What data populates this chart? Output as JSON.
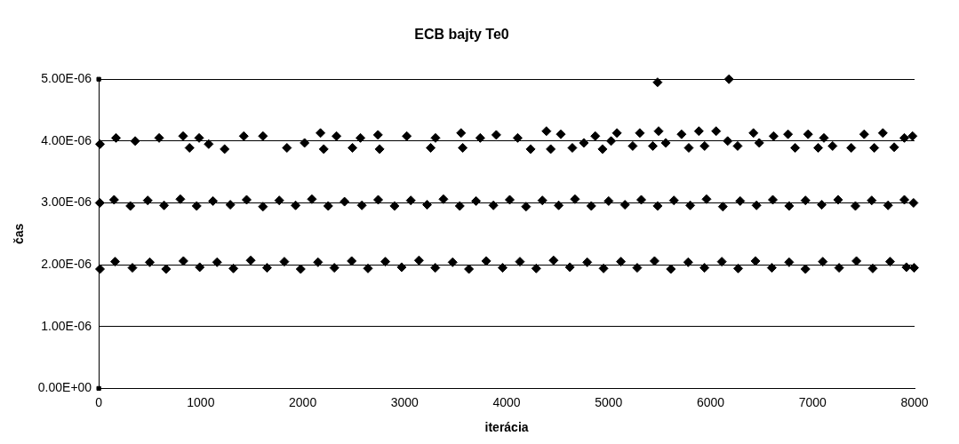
{
  "chart_data": {
    "type": "scatter",
    "title": "ECB bajty Te0",
    "xlabel": "iterácia",
    "ylabel": "čas",
    "xlim": [
      0,
      8000
    ],
    "xticks": [
      0,
      1000,
      2000,
      3000,
      4000,
      5000,
      6000,
      7000,
      8000
    ],
    "ylim": [
      0,
      5e-06
    ],
    "yticks": [
      {
        "value": 0,
        "label": "0.00E+00"
      },
      {
        "value": 1e-06,
        "label": "1.00E-06"
      },
      {
        "value": 2e-06,
        "label": "2.00E-06"
      },
      {
        "value": 3e-06,
        "label": "3.00E-06"
      },
      {
        "value": 4e-06,
        "label": "4.00E-06"
      },
      {
        "value": 5e-06,
        "label": "5.00E-06"
      }
    ],
    "grid": "y",
    "legend": false,
    "marker": "diamond",
    "series": [
      {
        "color": "#000000",
        "x": [
          12,
          169,
          357,
          592,
          827,
          890,
          984,
          1078,
          1234,
          1422,
          1610,
          1845,
          2018,
          2174,
          2206,
          2331,
          2488,
          2566,
          2738,
          2754,
          3020,
          3255,
          3302,
          3553,
          3569,
          3741,
          3898,
          4108,
          4235,
          4390,
          4432,
          4531,
          4644,
          4757,
          4869,
          4940,
          5024,
          5081,
          5236,
          5306,
          5433,
          5480,
          5490,
          5560,
          5715,
          5786,
          5885,
          5941,
          6054,
          6167,
          6180,
          6265,
          6420,
          6477,
          6618,
          6759,
          6829,
          6956,
          7055,
          7111,
          7196,
          7379,
          7506,
          7605,
          7689,
          7800,
          7900,
          7980
        ],
        "values": [
          3.95e-06,
          4.05e-06,
          4e-06,
          4.05e-06,
          4.08e-06,
          3.89e-06,
          4.05e-06,
          3.95e-06,
          3.87e-06,
          4.08e-06,
          4.08e-06,
          3.89e-06,
          3.97e-06,
          4.13e-06,
          3.87e-06,
          4.08e-06,
          3.89e-06,
          4.05e-06,
          4.1e-06,
          3.87e-06,
          4.08e-06,
          3.89e-06,
          4.05e-06,
          4.13e-06,
          3.89e-06,
          4.05e-06,
          4.1e-06,
          4.05e-06,
          3.87e-06,
          4.16e-06,
          3.87e-06,
          4.11e-06,
          3.89e-06,
          3.97e-06,
          4.08e-06,
          3.87e-06,
          4e-06,
          4.13e-06,
          3.92e-06,
          4.13e-06,
          3.92e-06,
          4.95e-06,
          4.16e-06,
          3.97e-06,
          4.11e-06,
          3.89e-06,
          4.16e-06,
          3.92e-06,
          4.16e-06,
          4e-06,
          5e-06,
          3.92e-06,
          4.13e-06,
          3.97e-06,
          4.08e-06,
          4.11e-06,
          3.89e-06,
          4.11e-06,
          3.89e-06,
          4.05e-06,
          3.92e-06,
          3.89e-06,
          4.11e-06,
          3.89e-06,
          4.13e-06,
          3.9e-06,
          4.05e-06,
          4.08e-06
        ]
      },
      {
        "color": "#000000",
        "x": [
          10,
          150,
          310,
          480,
          640,
          800,
          960,
          1120,
          1290,
          1450,
          1610,
          1770,
          1930,
          2090,
          2250,
          2410,
          2580,
          2740,
          2900,
          3060,
          3220,
          3380,
          3540,
          3700,
          3870,
          4030,
          4190,
          4350,
          4510,
          4670,
          4830,
          5000,
          5160,
          5320,
          5480,
          5640,
          5800,
          5960,
          6120,
          6290,
          6450,
          6610,
          6770,
          6930,
          7090,
          7250,
          7420,
          7580,
          7740,
          7900,
          7990
        ],
        "values": [
          3e-06,
          3.05e-06,
          2.95e-06,
          3.04e-06,
          2.96e-06,
          3.06e-06,
          2.95e-06,
          3.03e-06,
          2.97e-06,
          3.05e-06,
          2.94e-06,
          3.04e-06,
          2.96e-06,
          3.06e-06,
          2.95e-06,
          3.02e-06,
          2.96e-06,
          3.05e-06,
          2.95e-06,
          3.04e-06,
          2.97e-06,
          3.06e-06,
          2.95e-06,
          3.03e-06,
          2.96e-06,
          3.05e-06,
          2.94e-06,
          3.04e-06,
          2.96e-06,
          3.06e-06,
          2.95e-06,
          3.03e-06,
          2.97e-06,
          3.05e-06,
          2.95e-06,
          3.04e-06,
          2.96e-06,
          3.06e-06,
          2.94e-06,
          3.03e-06,
          2.96e-06,
          3.05e-06,
          2.95e-06,
          3.04e-06,
          2.97e-06,
          3.05e-06,
          2.95e-06,
          3.04e-06,
          2.96e-06,
          3.05e-06,
          3e-06
        ]
      },
      {
        "color": "#000000",
        "x": [
          12,
          160,
          330,
          500,
          660,
          830,
          990,
          1160,
          1320,
          1490,
          1650,
          1820,
          1980,
          2150,
          2310,
          2480,
          2640,
          2810,
          2970,
          3140,
          3300,
          3470,
          3630,
          3800,
          3960,
          4130,
          4290,
          4460,
          4620,
          4790,
          4950,
          5120,
          5280,
          5450,
          5610,
          5780,
          5940,
          6110,
          6270,
          6440,
          6600,
          6770,
          6930,
          7100,
          7260,
          7430,
          7590,
          7760,
          7920,
          7995
        ],
        "values": [
          1.93e-06,
          2.05e-06,
          1.95e-06,
          2.04e-06,
          1.93e-06,
          2.06e-06,
          1.96e-06,
          2.04e-06,
          1.94e-06,
          2.07e-06,
          1.95e-06,
          2.05e-06,
          1.93e-06,
          2.04e-06,
          1.95e-06,
          2.06e-06,
          1.94e-06,
          2.05e-06,
          1.96e-06,
          2.07e-06,
          1.95e-06,
          2.04e-06,
          1.93e-06,
          2.06e-06,
          1.95e-06,
          2.05e-06,
          1.94e-06,
          2.07e-06,
          1.96e-06,
          2.04e-06,
          1.94e-06,
          2.05e-06,
          1.95e-06,
          2.06e-06,
          1.93e-06,
          2.04e-06,
          1.95e-06,
          2.05e-06,
          1.94e-06,
          2.06e-06,
          1.95e-06,
          2.04e-06,
          1.93e-06,
          2.05e-06,
          1.95e-06,
          2.06e-06,
          1.94e-06,
          2.05e-06,
          1.96e-06,
          1.95e-06
        ]
      },
      {
        "color": "#000000",
        "marker": "square",
        "x": [
          0,
          0
        ],
        "values": [
          0,
          5e-06
        ]
      }
    ]
  }
}
